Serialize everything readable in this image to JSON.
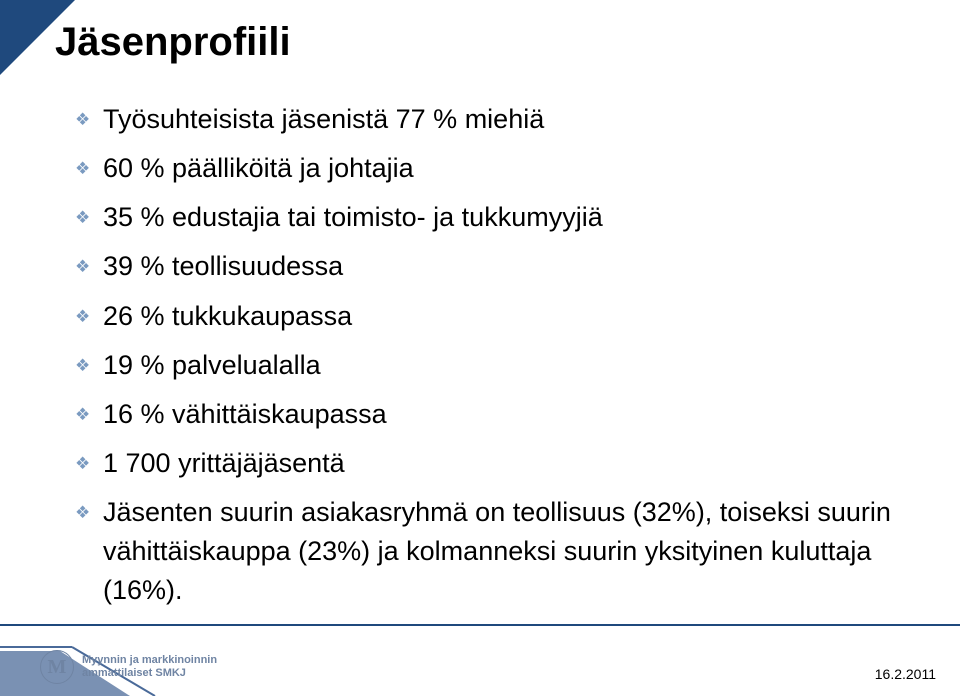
{
  "title": "Jäsenprofiili",
  "title_fontsize": 40,
  "title_color": "#000000",
  "bullets": [
    "Työsuhteisista jäsenistä 77 % miehiä",
    "60 % päälliköitä ja johtajia",
    "35 % edustajia tai toimisto- ja tukkumyyjiä",
    "39 % teollisuudessa",
    "26 % tukkukaupassa",
    "19 % palvelualalla",
    "16 % vähittäiskaupassa",
    "1 700 yrittäjäjäsentä",
    "Jäsenten suurin asiakasryhmä on teollisuus (32%), toiseksi suurin vähittäiskauppa (23%) ja kolmanneksi suurin yksityinen kuluttaja (16%)."
  ],
  "bullet_fontsize": 27,
  "bullet_color": "#000000",
  "bullet_marker_color": "#7a9ac0",
  "accent_color": "#1f497d",
  "footer_line_color": "#1f497d",
  "footer_deco_fill": "#7a91b3",
  "footer_deco_line": "#4a6a99",
  "logo_text_line1": "Myynnin ja markkinoinnin",
  "logo_text_line2": "ammattilaiset SMKJ",
  "logo_color": "#6f84a3",
  "date": "16.2.2011",
  "date_fontsize": 14,
  "background_color": "#ffffff",
  "slide_width": 960,
  "slide_height": 696
}
